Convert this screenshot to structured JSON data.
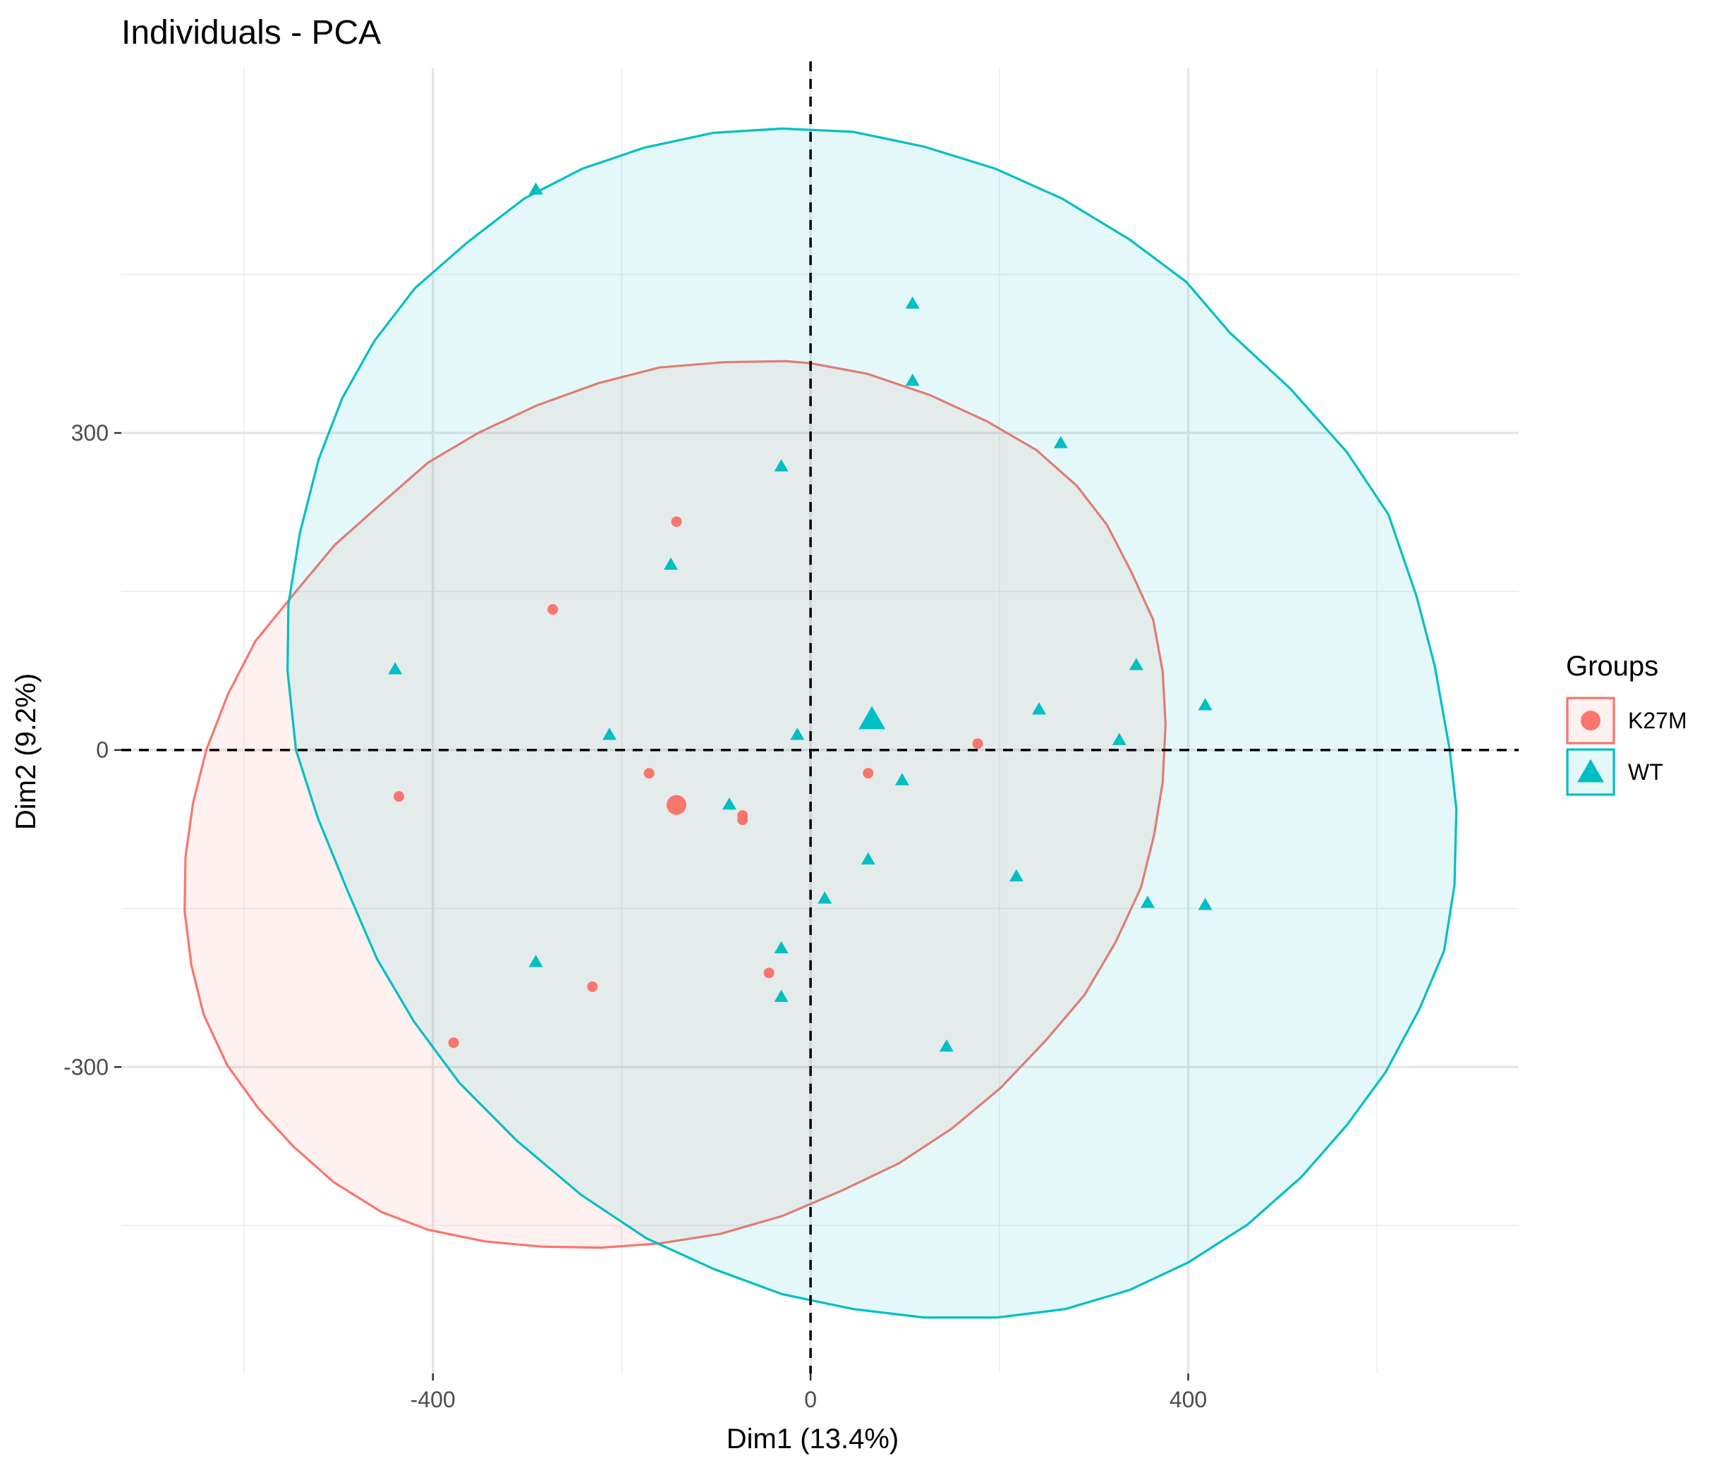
{
  "chart_data": {
    "type": "scatter",
    "title": "Individuals - PCA",
    "xlabel": "Dim1 (13.4%)",
    "ylabel": "Dim2 (9.2%)",
    "xlim": [
      -730,
      750
    ],
    "ylim": [
      -590,
      645
    ],
    "xticks": [
      -400,
      0,
      400
    ],
    "yticks": [
      -300,
      0,
      300
    ],
    "grid": true,
    "reference_lines": {
      "x": 0,
      "y": 0
    },
    "legend": {
      "title": "Groups",
      "position": "right",
      "items": [
        {
          "label": "K27M",
          "shape": "circle",
          "color": "#F8766D"
        },
        {
          "label": "WT",
          "shape": "triangle",
          "color": "#00BFC4"
        }
      ]
    },
    "series": [
      {
        "name": "K27M",
        "color": "#F8766D",
        "marker": "circle",
        "points": [
          [
            -142,
            216
          ],
          [
            -273,
            133
          ],
          [
            -436,
            -44
          ],
          [
            -171,
            -22
          ],
          [
            -72,
            -62
          ],
          [
            -72,
            -66
          ],
          [
            -44,
            -211
          ],
          [
            -231,
            -224
          ],
          [
            -378,
            -277
          ],
          [
            61,
            -22
          ],
          [
            177,
            6
          ]
        ],
        "centroid": [
          -142,
          -52
        ],
        "ellipse": [
          [
            -26,
            368
          ],
          [
            -92,
            367
          ],
          [
            -160,
            362
          ],
          [
            -225,
            347
          ],
          [
            -290,
            326
          ],
          [
            -352,
            300
          ],
          [
            -405,
            272
          ],
          [
            -455,
            233
          ],
          [
            -504,
            194
          ],
          [
            -546,
            149
          ],
          [
            -588,
            103
          ],
          [
            -617,
            53
          ],
          [
            -640,
            0
          ],
          [
            -654,
            -50
          ],
          [
            -662,
            -101
          ],
          [
            -663,
            -152
          ],
          [
            -656,
            -203
          ],
          [
            -643,
            -250
          ],
          [
            -618,
            -298
          ],
          [
            -585,
            -339
          ],
          [
            -548,
            -375
          ],
          [
            -505,
            -409
          ],
          [
            -455,
            -437
          ],
          [
            -405,
            -454
          ],
          [
            -345,
            -465
          ],
          [
            -285,
            -470
          ],
          [
            -222,
            -471
          ],
          [
            -160,
            -467
          ],
          [
            -96,
            -458
          ],
          [
            -30,
            -441
          ],
          [
            33,
            -417
          ],
          [
            94,
            -391
          ],
          [
            150,
            -358
          ],
          [
            201,
            -320
          ],
          [
            249,
            -275
          ],
          [
            290,
            -232
          ],
          [
            323,
            -182
          ],
          [
            350,
            -130
          ],
          [
            364,
            -80
          ],
          [
            373,
            -30
          ],
          [
            376,
            24
          ],
          [
            373,
            74
          ],
          [
            363,
            123
          ],
          [
            340,
            168
          ],
          [
            314,
            213
          ],
          [
            282,
            250
          ],
          [
            239,
            284
          ],
          [
            187,
            311
          ],
          [
            126,
            336
          ],
          [
            60,
            356
          ],
          [
            0,
            366
          ],
          [
            -26,
            368
          ]
        ]
      },
      {
        "name": "WT",
        "color": "#00BFC4",
        "marker": "triangle",
        "points": [
          [
            -291,
            530
          ],
          [
            108,
            422
          ],
          [
            108,
            349
          ],
          [
            265,
            290
          ],
          [
            -31,
            268
          ],
          [
            -148,
            175
          ],
          [
            -440,
            76
          ],
          [
            -213,
            14
          ],
          [
            -14,
            14
          ],
          [
            242,
            38
          ],
          [
            345,
            80
          ],
          [
            418,
            42
          ],
          [
            327,
            9
          ],
          [
            -86,
            -52
          ],
          [
            97,
            -29
          ],
          [
            61,
            -104
          ],
          [
            218,
            -120
          ],
          [
            357,
            -145
          ],
          [
            418,
            -147
          ],
          [
            15,
            -141
          ],
          [
            -31,
            -188
          ],
          [
            -291,
            -201
          ],
          [
            -31,
            -234
          ],
          [
            144,
            -281
          ]
        ],
        "centroid": [
          65,
          28
        ],
        "ellipse": [
          [
            -30,
            588
          ],
          [
            -103,
            584
          ],
          [
            -176,
            570
          ],
          [
            -242,
            550
          ],
          [
            -303,
            522
          ],
          [
            -364,
            480
          ],
          [
            -419,
            437
          ],
          [
            -462,
            387
          ],
          [
            -496,
            333
          ],
          [
            -521,
            275
          ],
          [
            -541,
            205
          ],
          [
            -553,
            138
          ],
          [
            -554,
            75
          ],
          [
            -545,
            0
          ],
          [
            -522,
            -64
          ],
          [
            -490,
            -134
          ],
          [
            -459,
            -198
          ],
          [
            -420,
            -257
          ],
          [
            -372,
            -315
          ],
          [
            -312,
            -369
          ],
          [
            -243,
            -421
          ],
          [
            -174,
            -462
          ],
          [
            -103,
            -491
          ],
          [
            -30,
            -515
          ],
          [
            45,
            -529
          ],
          [
            120,
            -537
          ],
          [
            198,
            -537
          ],
          [
            270,
            -529
          ],
          [
            338,
            -511
          ],
          [
            400,
            -485
          ],
          [
            463,
            -449
          ],
          [
            520,
            -404
          ],
          [
            568,
            -355
          ],
          [
            609,
            -305
          ],
          [
            645,
            -245
          ],
          [
            671,
            -190
          ],
          [
            682,
            -128
          ],
          [
            684,
            -56
          ],
          [
            677,
            0
          ],
          [
            661,
            80
          ],
          [
            642,
            145
          ],
          [
            612,
            223
          ],
          [
            568,
            282
          ],
          [
            508,
            342
          ],
          [
            444,
            395
          ],
          [
            398,
            443
          ],
          [
            338,
            483
          ],
          [
            266,
            522
          ],
          [
            196,
            550
          ],
          [
            120,
            571
          ],
          [
            45,
            585
          ],
          [
            -30,
            588
          ]
        ]
      }
    ]
  }
}
